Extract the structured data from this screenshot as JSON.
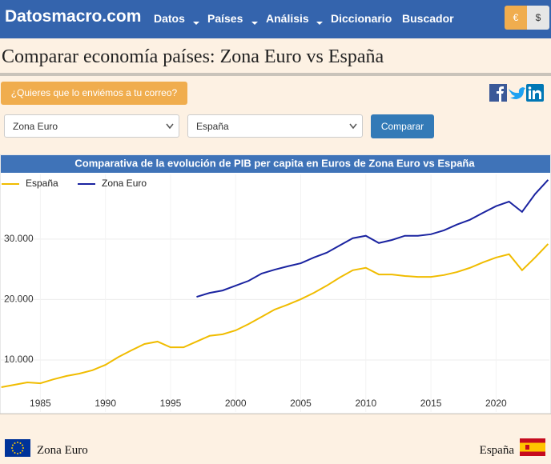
{
  "header": {
    "logo": "Datosmacro.com",
    "menu": [
      "Datos",
      "Países",
      "Análisis",
      "Diccionario",
      "Buscador"
    ],
    "currencies": [
      "€",
      "$"
    ]
  },
  "page_title": "Comparar economía países: Zona Euro vs España",
  "email_button": "¿Quieres que lo enviémos a tu correo?",
  "selects": [
    "Zona Euro",
    "España"
  ],
  "compare_button": "Comparar",
  "chart_data": {
    "type": "line",
    "title": "Comparativa de la evolución de PIB per capita en Euros de Zona Euro vs España",
    "x": [
      1982,
      1983,
      1984,
      1985,
      1986,
      1987,
      1988,
      1989,
      1990,
      1991,
      1992,
      1993,
      1994,
      1995,
      1996,
      1997,
      1998,
      1999,
      2000,
      2001,
      2002,
      2003,
      2004,
      2005,
      2006,
      2007,
      2008,
      2009,
      2010,
      2011,
      2012,
      2013,
      2014,
      2015,
      2016,
      2017,
      2018,
      2019,
      2020,
      2021,
      2022,
      2023,
      2024
    ],
    "series": [
      {
        "name": "España",
        "color": "#f0bc00",
        "values": [
          5500,
          5900,
          6300,
          6150,
          6800,
          7350,
          7750,
          8300,
          9200,
          10500,
          11600,
          12650,
          13050,
          12100,
          12100,
          13050,
          14000,
          14250,
          14900,
          15950,
          17150,
          18350,
          19150,
          20050,
          21100,
          22300,
          23650,
          24850,
          25250,
          24150,
          24150,
          23900,
          23750,
          23750,
          24050,
          24550,
          25250,
          26150,
          26950,
          27500,
          24850,
          26950,
          29200
        ]
      },
      {
        "name": "Zona Euro",
        "color": "#1a23a0",
        "values": [
          null,
          null,
          null,
          null,
          null,
          null,
          null,
          null,
          null,
          null,
          null,
          null,
          null,
          null,
          null,
          20450,
          21100,
          21500,
          22300,
          23100,
          24300,
          24950,
          25500,
          26000,
          26950,
          27750,
          28950,
          30150,
          30550,
          29350,
          29850,
          30550,
          30550,
          30800,
          31450,
          32400,
          33200,
          34350,
          35450,
          36200,
          34500,
          37450,
          39800
        ]
      }
    ],
    "xlim": [
      1981.9,
      2024.1
    ],
    "xticks": [
      1985,
      1990,
      1995,
      2000,
      2005,
      2010,
      2015,
      2020
    ],
    "ylim": [
      1400,
      40700
    ],
    "yticks": [
      {
        "value": 10000,
        "label": "10.000"
      },
      {
        "value": 20000,
        "label": "20.000"
      },
      {
        "value": 30000,
        "label": "30.000"
      }
    ],
    "grid": true
  },
  "footer": {
    "left": "Zona Euro",
    "right": "España"
  }
}
